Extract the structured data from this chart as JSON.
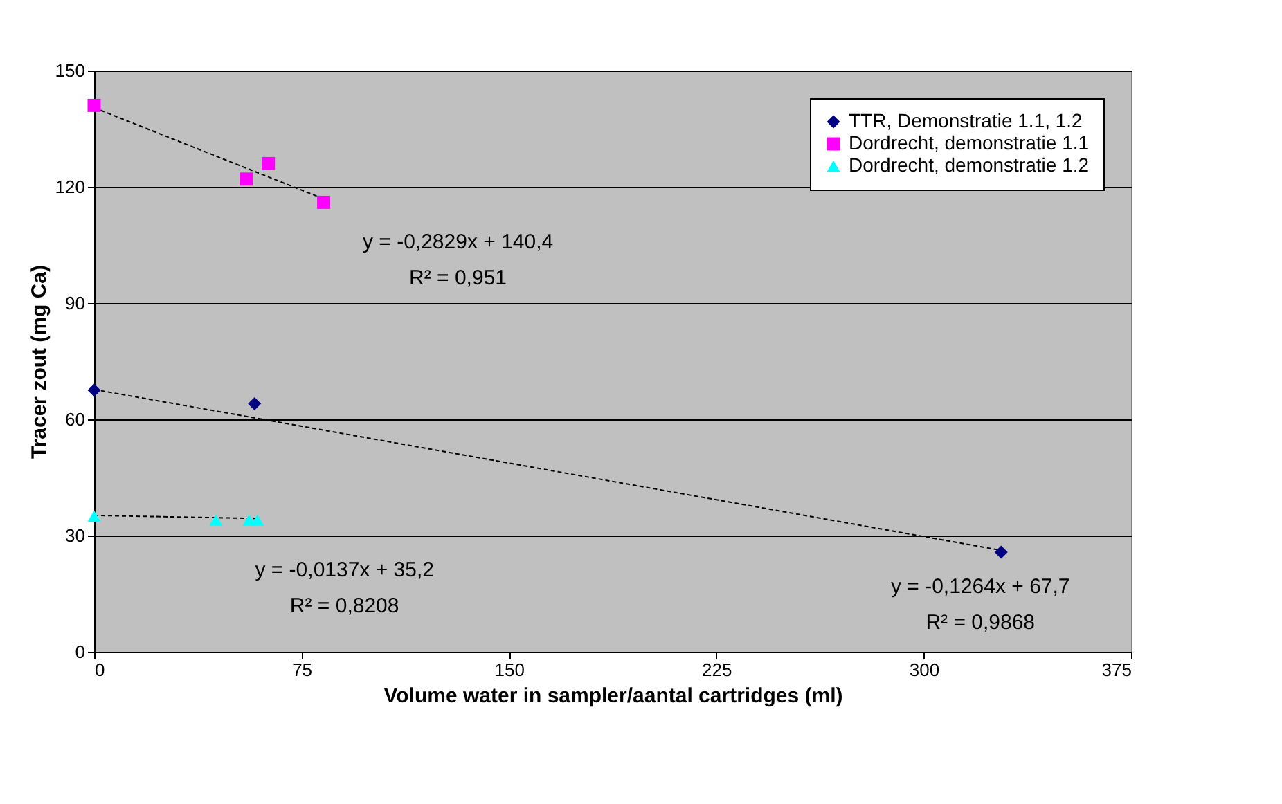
{
  "chart_data": {
    "type": "scatter",
    "xlabel": "Volume water in sampler/aantal cartridges (ml)",
    "ylabel": "Tracer zout (mg Ca)",
    "xlim": [
      0,
      375
    ],
    "xticks": [
      0,
      75,
      150,
      225,
      300,
      375
    ],
    "ylim": [
      0,
      150
    ],
    "yticks": [
      0,
      30,
      60,
      90,
      120,
      150
    ],
    "grid": "y",
    "legend": "top right",
    "series": [
      {
        "name": "TTR, Demonstratie 1.1, 1.2",
        "color": "#000080",
        "marker": "diamond",
        "x": [
          0,
          58,
          328
        ],
        "values": [
          67.5,
          64,
          25.7
        ]
      },
      {
        "name": "Dordrecht, demonstratie 1.1",
        "color": "#ff00ff",
        "marker": "square",
        "x": [
          0,
          55,
          63,
          83
        ],
        "values": [
          141,
          122,
          126,
          116
        ]
      },
      {
        "name": "Dordrecht, demonstratie 1.2",
        "color": "#00ffff",
        "marker": "triangle",
        "x": [
          0,
          44,
          56,
          59
        ],
        "values": [
          35,
          34,
          34,
          34
        ]
      },
      {
        "type": "line",
        "color": "#000000",
        "line_style": "dashed",
        "marker": "none",
        "x": [
          0,
          328
        ],
        "values": [
          67.7,
          26.2
        ]
      },
      {
        "type": "line",
        "color": "#000000",
        "line_style": "dashed",
        "marker": "none",
        "x": [
          0,
          83
        ],
        "values": [
          140.4,
          116.9
        ]
      },
      {
        "type": "line",
        "color": "#000000",
        "line_style": "dashed",
        "marker": "none",
        "x": [
          0,
          59
        ],
        "values": [
          35.2,
          34.4
        ]
      }
    ],
    "annotations": [
      "y = -0,1264x + 67,7",
      "R² = 0,9868",
      "y = -0,2829x + 140,4",
      "R² = 0,951",
      "y = -0,0137x + 35,2",
      "R² = 0,8208"
    ]
  }
}
